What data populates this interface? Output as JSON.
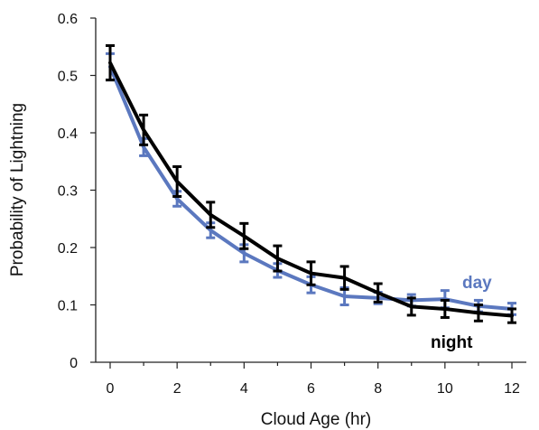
{
  "chart_data": {
    "type": "line",
    "title": "",
    "xlabel": "Cloud Age (hr)",
    "ylabel": "Probability of Lightning",
    "xlim": [
      0,
      12
    ],
    "ylim": [
      0,
      0.6
    ],
    "xticks": [
      "0",
      "2",
      "4",
      "6",
      "8",
      "10",
      "12"
    ],
    "yticks": [
      "0",
      "0.1",
      "0.2",
      "0.3",
      "0.4",
      "0.5",
      "0.6"
    ],
    "x": [
      0,
      1,
      2,
      3,
      4,
      5,
      6,
      7,
      8,
      9,
      10,
      11,
      12
    ],
    "grid": false,
    "legend": "inline labels near right end",
    "series": [
      {
        "name": "day",
        "color": "#5b78bf",
        "values": [
          0.515,
          0.375,
          0.285,
          0.23,
          0.19,
          0.16,
          0.135,
          0.115,
          0.112,
          0.108,
          0.11,
          0.098,
          0.093
        ],
        "error": [
          0.023,
          0.015,
          0.013,
          0.013,
          0.015,
          0.012,
          0.014,
          0.015,
          0.01,
          0.01,
          0.015,
          0.01,
          0.01
        ]
      },
      {
        "name": "night",
        "color": "#000000",
        "values": [
          0.522,
          0.405,
          0.315,
          0.257,
          0.22,
          0.181,
          0.155,
          0.147,
          0.121,
          0.097,
          0.093,
          0.086,
          0.081
        ],
        "error": [
          0.03,
          0.026,
          0.026,
          0.022,
          0.022,
          0.022,
          0.02,
          0.02,
          0.016,
          0.015,
          0.015,
          0.014,
          0.012
        ]
      }
    ]
  }
}
